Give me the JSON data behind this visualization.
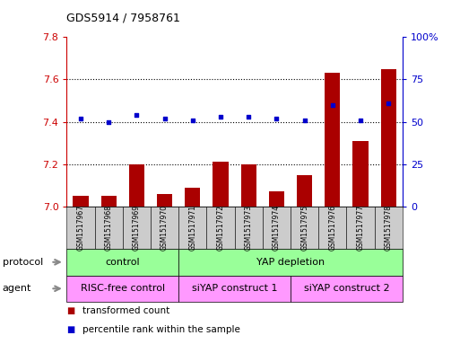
{
  "title": "GDS5914 / 7958761",
  "samples": [
    "GSM1517967",
    "GSM1517968",
    "GSM1517969",
    "GSM1517970",
    "GSM1517971",
    "GSM1517972",
    "GSM1517973",
    "GSM1517974",
    "GSM1517975",
    "GSM1517976",
    "GSM1517977",
    "GSM1517978"
  ],
  "transformed_count": [
    7.05,
    7.05,
    7.2,
    7.06,
    7.09,
    7.21,
    7.2,
    7.07,
    7.15,
    7.63,
    7.31,
    7.65
  ],
  "percentile_rank": [
    52,
    50,
    54,
    52,
    51,
    53,
    53,
    52,
    51,
    60,
    51,
    61
  ],
  "ylim_left": [
    7.0,
    7.8
  ],
  "ylim_right": [
    0,
    100
  ],
  "yticks_left": [
    7.0,
    7.2,
    7.4,
    7.6,
    7.8
  ],
  "yticks_right": [
    0,
    25,
    50,
    75,
    100
  ],
  "bar_color": "#aa0000",
  "dot_color": "#0000cc",
  "protocol_color": "#99ff99",
  "agent_color": "#ff99ff",
  "sample_bg_color": "#cccccc",
  "legend_bar_label": "transformed count",
  "legend_dot_label": "percentile rank within the sample",
  "bg_color": "#ffffff",
  "label_color_left": "#cc0000",
  "label_color_right": "#0000cc",
  "proto_defs": [
    {
      "label": "control",
      "start": 0,
      "end": 3
    },
    {
      "label": "YAP depletion",
      "start": 4,
      "end": 11
    }
  ],
  "agent_defs": [
    {
      "label": "RISC-free control",
      "start": 0,
      "end": 3
    },
    {
      "label": "siYAP construct 1",
      "start": 4,
      "end": 7
    },
    {
      "label": "siYAP construct 2",
      "start": 8,
      "end": 11
    }
  ]
}
